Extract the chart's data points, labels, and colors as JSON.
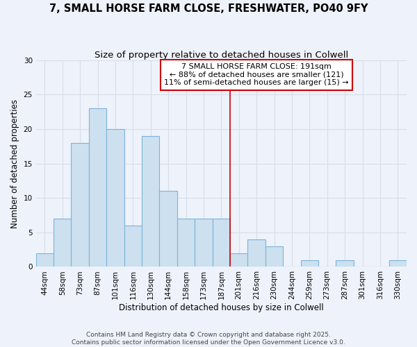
{
  "title": "7, SMALL HORSE FARM CLOSE, FRESHWATER, PO40 9FY",
  "subtitle": "Size of property relative to detached houses in Colwell",
  "xlabel": "Distribution of detached houses by size in Colwell",
  "ylabel": "Number of detached properties",
  "bin_labels": [
    "44sqm",
    "58sqm",
    "73sqm",
    "87sqm",
    "101sqm",
    "116sqm",
    "130sqm",
    "144sqm",
    "158sqm",
    "173sqm",
    "187sqm",
    "201sqm",
    "216sqm",
    "230sqm",
    "244sqm",
    "259sqm",
    "273sqm",
    "287sqm",
    "301sqm",
    "316sqm",
    "330sqm"
  ],
  "bar_values": [
    2,
    7,
    18,
    23,
    20,
    6,
    19,
    11,
    7,
    7,
    7,
    2,
    4,
    3,
    0,
    1,
    0,
    1,
    0,
    0,
    1
  ],
  "bar_color": "#cce0f0",
  "bar_edge_color": "#7ab4d8",
  "marker_bin_index": 10.5,
  "marker_color": "#cc0000",
  "annotation_line1": "7 SMALL HORSE FARM CLOSE: 191sqm",
  "annotation_line2": "← 88% of detached houses are smaller (121)",
  "annotation_line3": "11% of semi-detached houses are larger (15) →",
  "annotation_box_color": "#ffffff",
  "annotation_box_edge_color": "#cc0000",
  "ylim": [
    0,
    30
  ],
  "yticks": [
    0,
    5,
    10,
    15,
    20,
    25,
    30
  ],
  "footer_text": "Contains HM Land Registry data © Crown copyright and database right 2025.\nContains public sector information licensed under the Open Government Licence v3.0.",
  "background_color": "#eef2fa",
  "grid_color": "#d8dde8",
  "title_fontsize": 10.5,
  "subtitle_fontsize": 9.5,
  "axis_label_fontsize": 8.5,
  "tick_fontsize": 7.5,
  "annotation_fontsize": 8,
  "footer_fontsize": 6.5
}
